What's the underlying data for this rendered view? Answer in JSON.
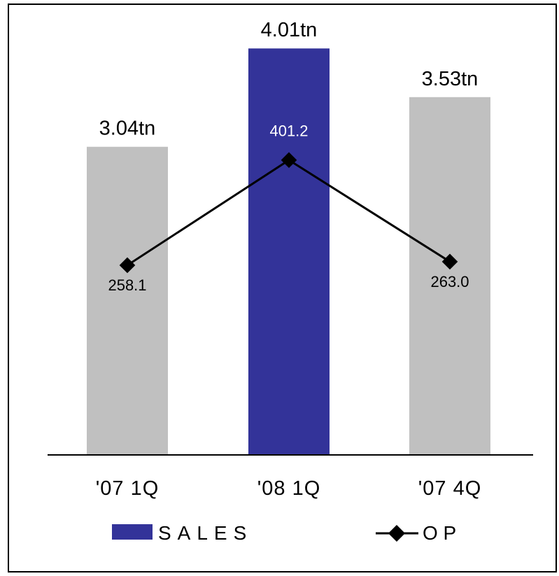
{
  "chart_data": {
    "type": "bar",
    "categories": [
      "'07 1Q",
      "'08 1Q",
      "'07 4Q"
    ],
    "series": [
      {
        "name": "SALES",
        "kind": "bar",
        "values": [
          3.04,
          4.01,
          3.53
        ],
        "labels": [
          "3.04tn",
          "4.01tn",
          "3.53tn"
        ],
        "colors": [
          "#c0c0c0",
          "#333399",
          "#c0c0c0"
        ]
      },
      {
        "name": "O P",
        "kind": "line",
        "values": [
          258.1,
          401.2,
          263.0
        ],
        "labels": [
          "258.1",
          "401.2",
          "263.0"
        ],
        "label_colors": [
          "#000000",
          "#ffffff",
          "#000000"
        ],
        "color": "#000000"
      }
    ],
    "bar_ylim": [
      0,
      4.35
    ],
    "line_ylim": [
      0,
      600
    ],
    "legend": {
      "placement": "bottom",
      "items": [
        "SALES",
        "O P"
      ]
    }
  }
}
